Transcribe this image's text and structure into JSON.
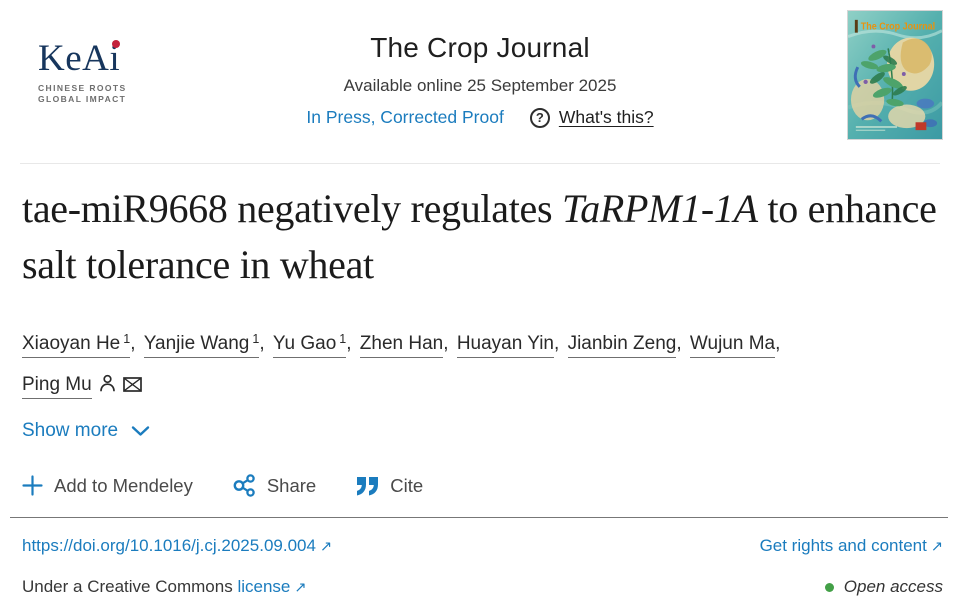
{
  "header": {
    "logo": {
      "brand": "KeAi",
      "tagline_line1": "CHINESE ROOTS",
      "tagline_line2": "GLOBAL IMPACT"
    },
    "journal_title": "The Crop Journal",
    "available_online": "Available online 25 September 2025",
    "in_press_label": "In Press, Corrected Proof",
    "question_glyph": "?",
    "whats_this_label": "What's this?",
    "cover": {
      "title": "The Crop Journal"
    }
  },
  "article": {
    "title_part1": "tae-miR9668 negatively regulates ",
    "title_italic": "TaRPM1-1A",
    "title_part2": " to enhance salt tolerance in wheat"
  },
  "authors": {
    "separator": ",",
    "items": [
      {
        "name": "Xiaoyan He",
        "sup": "1"
      },
      {
        "name": "Yanjie Wang",
        "sup": "1"
      },
      {
        "name": "Yu Gao",
        "sup": "1"
      },
      {
        "name": "Zhen Han"
      },
      {
        "name": "Huayan Yin"
      },
      {
        "name": "Jianbin Zeng"
      },
      {
        "name": "Wujun Ma"
      },
      {
        "name": "Ping Mu",
        "has_person_icon": true,
        "has_email_icon": true,
        "break_before": true
      }
    ]
  },
  "show_more_label": "Show more",
  "actions": {
    "mendeley_label": "Add to Mendeley",
    "share_label": "Share",
    "cite_label": "Cite"
  },
  "footer": {
    "doi_link": "https://doi.org/10.1016/j.cj.2025.09.004",
    "rights_link": "Get rights and content",
    "license_prefix": "Under a Creative Commons",
    "license_link": "license",
    "open_access_label": "Open access",
    "external_arrow": "↗"
  },
  "colors": {
    "link_blue": "#1b7cbe",
    "keai_navy": "#17365d",
    "keai_red": "#c3223c",
    "open_access_green": "#43a047"
  }
}
